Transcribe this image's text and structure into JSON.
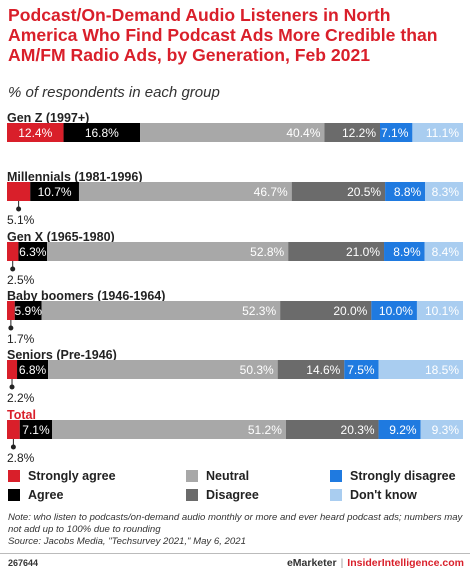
{
  "title": "Podcast/On-Demand Audio Listeners in North America Who Find Podcast Ads More Credible than AM/FM Radio Ads, by Generation, Feb 2021",
  "subtitle": "% of respondents in each group",
  "colors": {
    "strongly_agree": "#d91f2a",
    "agree": "#000000",
    "neutral": "#a8a8a8",
    "disagree": "#6b6b6b",
    "strongly_disagree": "#1f7ae0",
    "dont_know": "#a9cdf0",
    "total_label": "#d91f2a"
  },
  "chart_data": {
    "type": "bar",
    "orientation": "horizontal",
    "stacked": true,
    "categories": [
      "Gen Z (1997+)",
      "Millennials (1981-1996)",
      "Gen X (1965-1980)",
      "Baby boomers (1946-1964)",
      "Seniors (Pre-1946)",
      "Total"
    ],
    "series": [
      {
        "name": "Strongly agree",
        "values": [
          12.4,
          5.1,
          2.5,
          1.7,
          2.2,
          2.8
        ]
      },
      {
        "name": "Agree",
        "values": [
          16.8,
          10.7,
          6.3,
          5.9,
          6.8,
          7.1
        ]
      },
      {
        "name": "Neutral",
        "values": [
          40.4,
          46.7,
          52.8,
          52.3,
          50.3,
          51.2
        ]
      },
      {
        "name": "Disagree",
        "values": [
          12.2,
          20.5,
          21.0,
          20.0,
          14.6,
          20.3
        ]
      },
      {
        "name": "Strongly disagree",
        "values": [
          7.1,
          8.8,
          8.9,
          10.0,
          7.5,
          9.2
        ]
      },
      {
        "name": "Don't know",
        "values": [
          11.1,
          8.3,
          8.4,
          10.1,
          18.5,
          9.3
        ]
      }
    ],
    "units": "%",
    "legend_position": "bottom"
  },
  "legend": [
    {
      "key": "strongly_agree",
      "label": "Strongly agree"
    },
    {
      "key": "neutral",
      "label": "Neutral"
    },
    {
      "key": "strongly_disagree",
      "label": "Strongly disagree"
    },
    {
      "key": "agree",
      "label": "Agree"
    },
    {
      "key": "disagree",
      "label": "Disagree"
    },
    {
      "key": "dont_know",
      "label": "Don't know"
    }
  ],
  "note": "Note: who listen to podcasts/on-demand audio monthly or more and ever heard podcast ads; numbers may not add up to 100% due to rounding",
  "source": "Source: Jacobs Media, \"Techsurvey 2021,\" May 6, 2021",
  "chart_id": "267644",
  "brand": {
    "emarketer": "eMarketer",
    "separator": "|",
    "insider": "InsiderIntelligence.com"
  }
}
